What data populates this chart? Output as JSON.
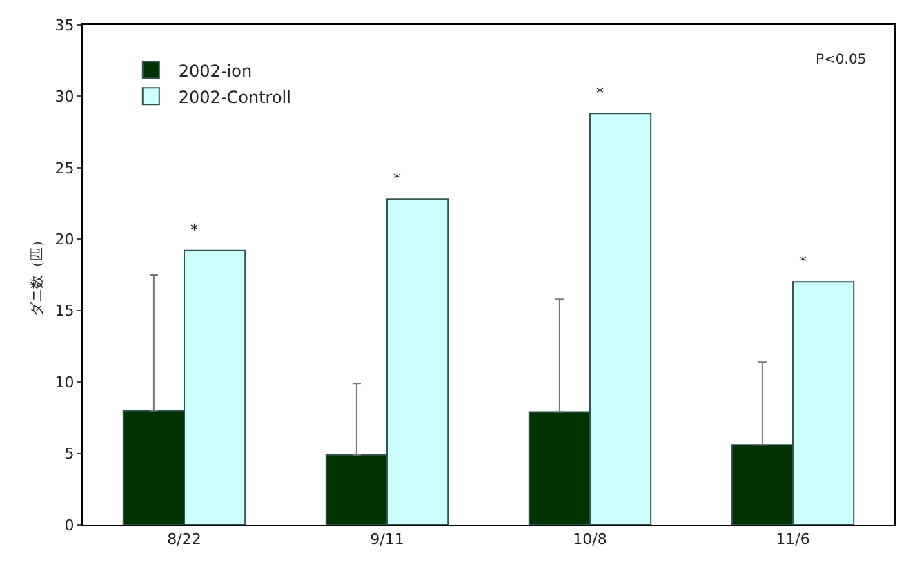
{
  "chart_data": {
    "type": "bar",
    "ylabel": "ダニ数（匹）",
    "categories": [
      "8/22",
      "9/11",
      "10/8",
      "11/6"
    ],
    "series": [
      {
        "name": "2002-ion",
        "color": "#003300",
        "values": [
          8.0,
          4.9,
          7.9,
          5.6
        ],
        "errors": [
          [
            8.0,
            17.5
          ],
          [
            4.9,
            9.9
          ],
          [
            7.9,
            15.8
          ],
          [
            5.6,
            11.4
          ]
        ]
      },
      {
        "name": "2002-Controll",
        "color": "#ccffff",
        "values": [
          19.2,
          22.8,
          28.8,
          17.0
        ]
      }
    ],
    "ylim": [
      0,
      35
    ],
    "yticks": [
      0,
      5,
      10,
      15,
      20,
      25,
      30,
      35
    ],
    "grid": false,
    "legend": "top left",
    "annotations": [
      "*",
      "*",
      "*",
      "*",
      "P<0.05"
    ]
  }
}
